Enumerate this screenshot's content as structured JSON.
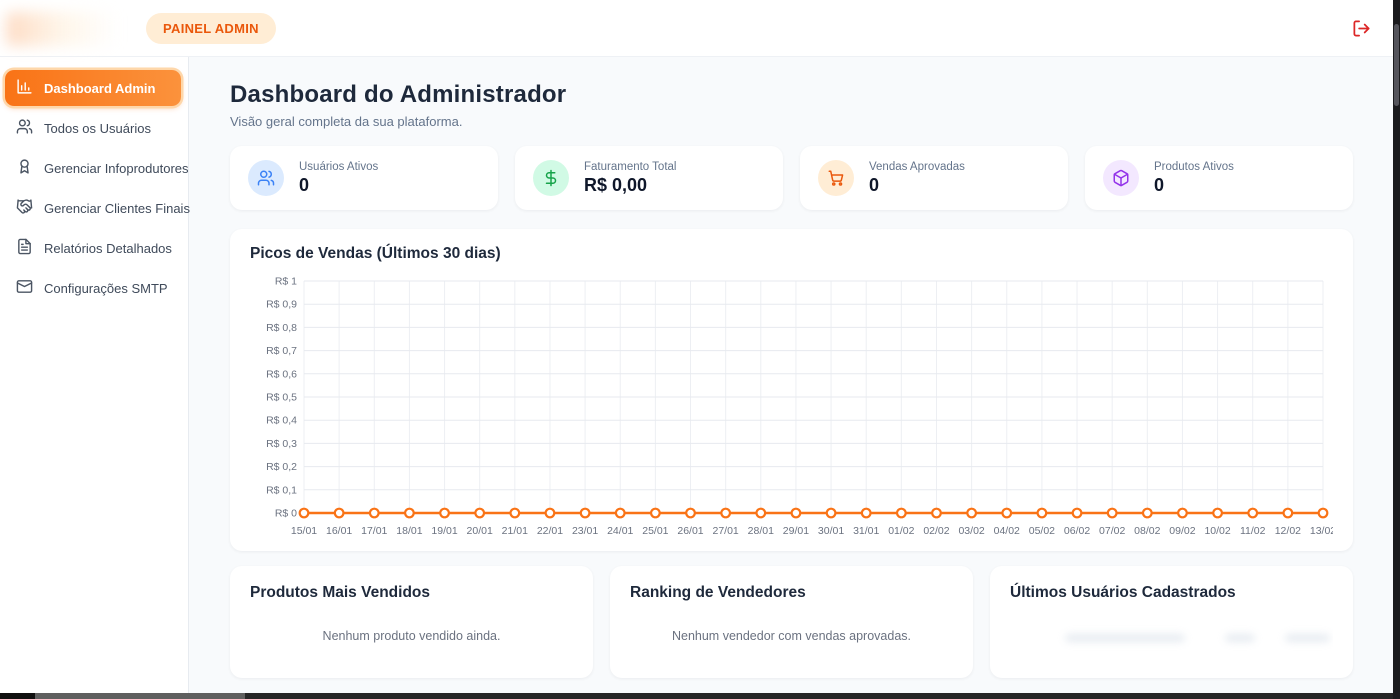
{
  "header": {
    "badge": "PAINEL ADMIN"
  },
  "sidebar": {
    "items": [
      {
        "label": "Dashboard Admin",
        "icon": "bar-chart-icon",
        "active": true
      },
      {
        "label": "Todos os Usuários",
        "icon": "users-icon",
        "active": false
      },
      {
        "label": "Gerenciar Infoprodutores",
        "icon": "award-icon",
        "active": false
      },
      {
        "label": "Gerenciar Clientes Finais",
        "icon": "handshake-icon",
        "active": false
      },
      {
        "label": "Relatórios Detalhados",
        "icon": "file-text-icon",
        "active": false
      },
      {
        "label": "Configurações SMTP",
        "icon": "mail-icon",
        "active": false
      }
    ]
  },
  "main": {
    "title": "Dashboard do Administrador",
    "subtitle": "Visão geral completa da sua plataforma.",
    "stats": [
      {
        "label": "Usuários Ativos",
        "value": "0",
        "icon": "users-icon",
        "icon_bg": "#dbeafe",
        "icon_color": "#3b82f6"
      },
      {
        "label": "Faturamento Total",
        "value": "R$ 0,00",
        "icon": "dollar-icon",
        "icon_bg": "#d1fae5",
        "icon_color": "#16a34a"
      },
      {
        "label": "Vendas Aprovadas",
        "value": "0",
        "icon": "shopping-cart-icon",
        "icon_bg": "#ffedd5",
        "icon_color": "#ea580c"
      },
      {
        "label": "Produtos Ativos",
        "value": "0",
        "icon": "package-icon",
        "icon_bg": "#f3e8ff",
        "icon_color": "#9333ea"
      }
    ],
    "empty_cards": [
      {
        "title": "Produtos Mais Vendidos",
        "empty_text": "Nenhum produto vendido ainda."
      },
      {
        "title": "Ranking de Vendedores",
        "empty_text": "Nenhum vendedor com vendas aprovadas."
      },
      {
        "title": "Últimos Usuários Cadastrados",
        "empty_text": ""
      }
    ]
  },
  "chart_data": {
    "type": "line",
    "title": "Picos de Vendas (Últimos 30 dias)",
    "x": [
      "15/01",
      "16/01",
      "17/01",
      "18/01",
      "19/01",
      "20/01",
      "21/01",
      "22/01",
      "23/01",
      "24/01",
      "25/01",
      "26/01",
      "27/01",
      "28/01",
      "29/01",
      "30/01",
      "31/01",
      "01/02",
      "02/02",
      "03/02",
      "04/02",
      "05/02",
      "06/02",
      "07/02",
      "08/02",
      "09/02",
      "10/02",
      "11/02",
      "12/02",
      "13/02"
    ],
    "values": [
      0,
      0,
      0,
      0,
      0,
      0,
      0,
      0,
      0,
      0,
      0,
      0,
      0,
      0,
      0,
      0,
      0,
      0,
      0,
      0,
      0,
      0,
      0,
      0,
      0,
      0,
      0,
      0,
      0,
      0
    ],
    "y_ticks": [
      {
        "value": 1,
        "label": "R$ 1"
      },
      {
        "value": 0.9,
        "label": "R$ 0,9"
      },
      {
        "value": 0.8,
        "label": "R$ 0,8"
      },
      {
        "value": 0.7,
        "label": "R$ 0,7"
      },
      {
        "value": 0.6,
        "label": "R$ 0,6"
      },
      {
        "value": 0.5,
        "label": "R$ 0,5"
      },
      {
        "value": 0.4,
        "label": "R$ 0,4"
      },
      {
        "value": 0.3,
        "label": "R$ 0,3"
      },
      {
        "value": 0.2,
        "label": "R$ 0,2"
      },
      {
        "value": 0.1,
        "label": "R$ 0,1"
      },
      {
        "value": 0,
        "label": "R$ 0"
      }
    ],
    "ylim": [
      0,
      1
    ],
    "grid": true,
    "legend": "none",
    "line_color": "#f97316",
    "marker": "hollow-circle"
  }
}
